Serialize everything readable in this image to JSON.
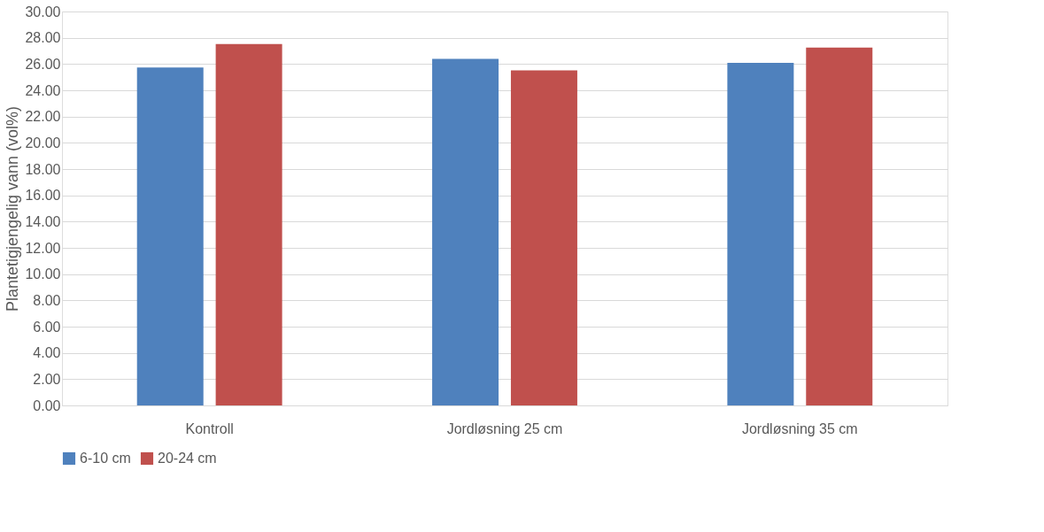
{
  "chart_data": {
    "type": "bar",
    "ylabel": "Plantetigjengelig vann (vol%)",
    "categories": [
      "Kontroll",
      "Jordløsning 25 cm",
      "Jordløsning 35 cm"
    ],
    "series": [
      {
        "name": "6-10 cm",
        "color": "#4f81bd",
        "values": [
          25.74,
          26.4,
          26.09
        ]
      },
      {
        "name": "20-24 cm",
        "color": "#c0504d",
        "values": [
          27.52,
          25.52,
          27.25
        ]
      }
    ],
    "ylim": [
      0,
      30
    ],
    "yticks": [
      {
        "value": 0,
        "label": "0.00"
      },
      {
        "value": 2,
        "label": "2.00"
      },
      {
        "value": 4,
        "label": "4.00"
      },
      {
        "value": 6,
        "label": "6.00"
      },
      {
        "value": 8,
        "label": "8.00"
      },
      {
        "value": 10,
        "label": "10.00"
      },
      {
        "value": 12,
        "label": "12.00"
      },
      {
        "value": 14,
        "label": "14.00"
      },
      {
        "value": 16,
        "label": "16.00"
      },
      {
        "value": 18,
        "label": "18.00"
      },
      {
        "value": 20,
        "label": "20.00"
      },
      {
        "value": 22,
        "label": "22.00"
      },
      {
        "value": 24,
        "label": "24.00"
      },
      {
        "value": 26,
        "label": "26.00"
      },
      {
        "value": 28,
        "label": "28.00"
      },
      {
        "value": 30,
        "label": "30.00"
      }
    ],
    "grid": "y",
    "legend": "bottom"
  }
}
